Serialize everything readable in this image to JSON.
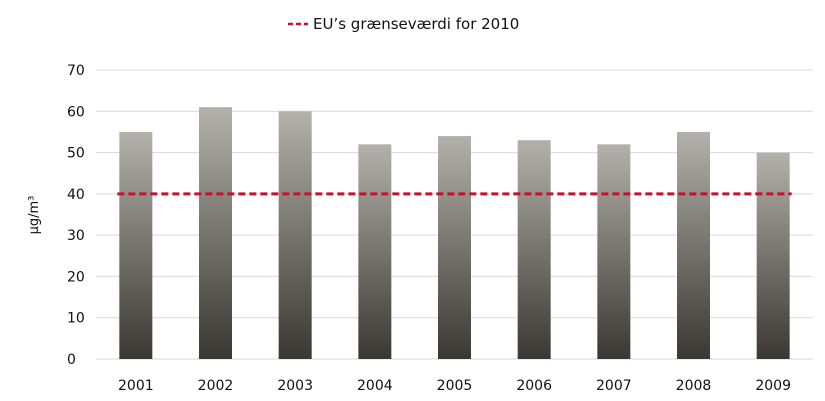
{
  "chart_data": {
    "type": "bar",
    "categories": [
      "2001",
      "2002",
      "2003",
      "2004",
      "2005",
      "2006",
      "2007",
      "2008",
      "2009"
    ],
    "values": [
      55,
      61,
      60,
      52,
      54,
      53,
      52,
      55,
      50
    ],
    "ylabel": "µg/m³",
    "ylim": [
      0,
      70
    ],
    "yticks": [
      "0",
      "10",
      "20",
      "30",
      "40",
      "50",
      "60",
      "70"
    ],
    "grid": true,
    "legend_position": "top-center",
    "reference_line": {
      "name": "EU’s grænseværdi for 2010",
      "value": 40,
      "color": "#c8102e",
      "style": "dashed"
    },
    "colors": {
      "bar_top": "#b3b1a9",
      "bar_bottom": "#3b3734",
      "grid": "#d9d9d9"
    }
  }
}
